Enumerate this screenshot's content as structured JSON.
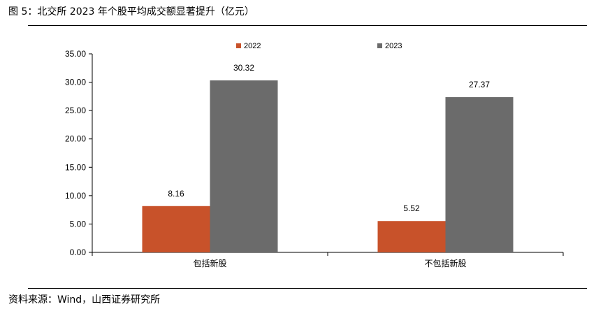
{
  "figure": {
    "title": "图 5：北交所 2023 年个股平均成交额显著提升（亿元）",
    "source": "资料来源：Wind，山西证券研究所"
  },
  "chart_data": {
    "type": "bar",
    "categories": [
      "包括新股",
      "不包括新股"
    ],
    "series": [
      {
        "name": "2022",
        "values": [
          8.16,
          5.52
        ],
        "color": "#c8522a"
      },
      {
        "name": "2023",
        "values": [
          30.32,
          27.37
        ],
        "color": "#6b6b6b"
      }
    ],
    "data_labels": [
      [
        "8.16",
        "5.52"
      ],
      [
        "30.32",
        "27.37"
      ]
    ],
    "ylim": [
      0,
      35
    ],
    "yticks": [
      "0.00",
      "5.00",
      "10.00",
      "15.00",
      "20.00",
      "25.00",
      "30.00",
      "35.00"
    ],
    "grid": false,
    "legend": "top-center"
  }
}
